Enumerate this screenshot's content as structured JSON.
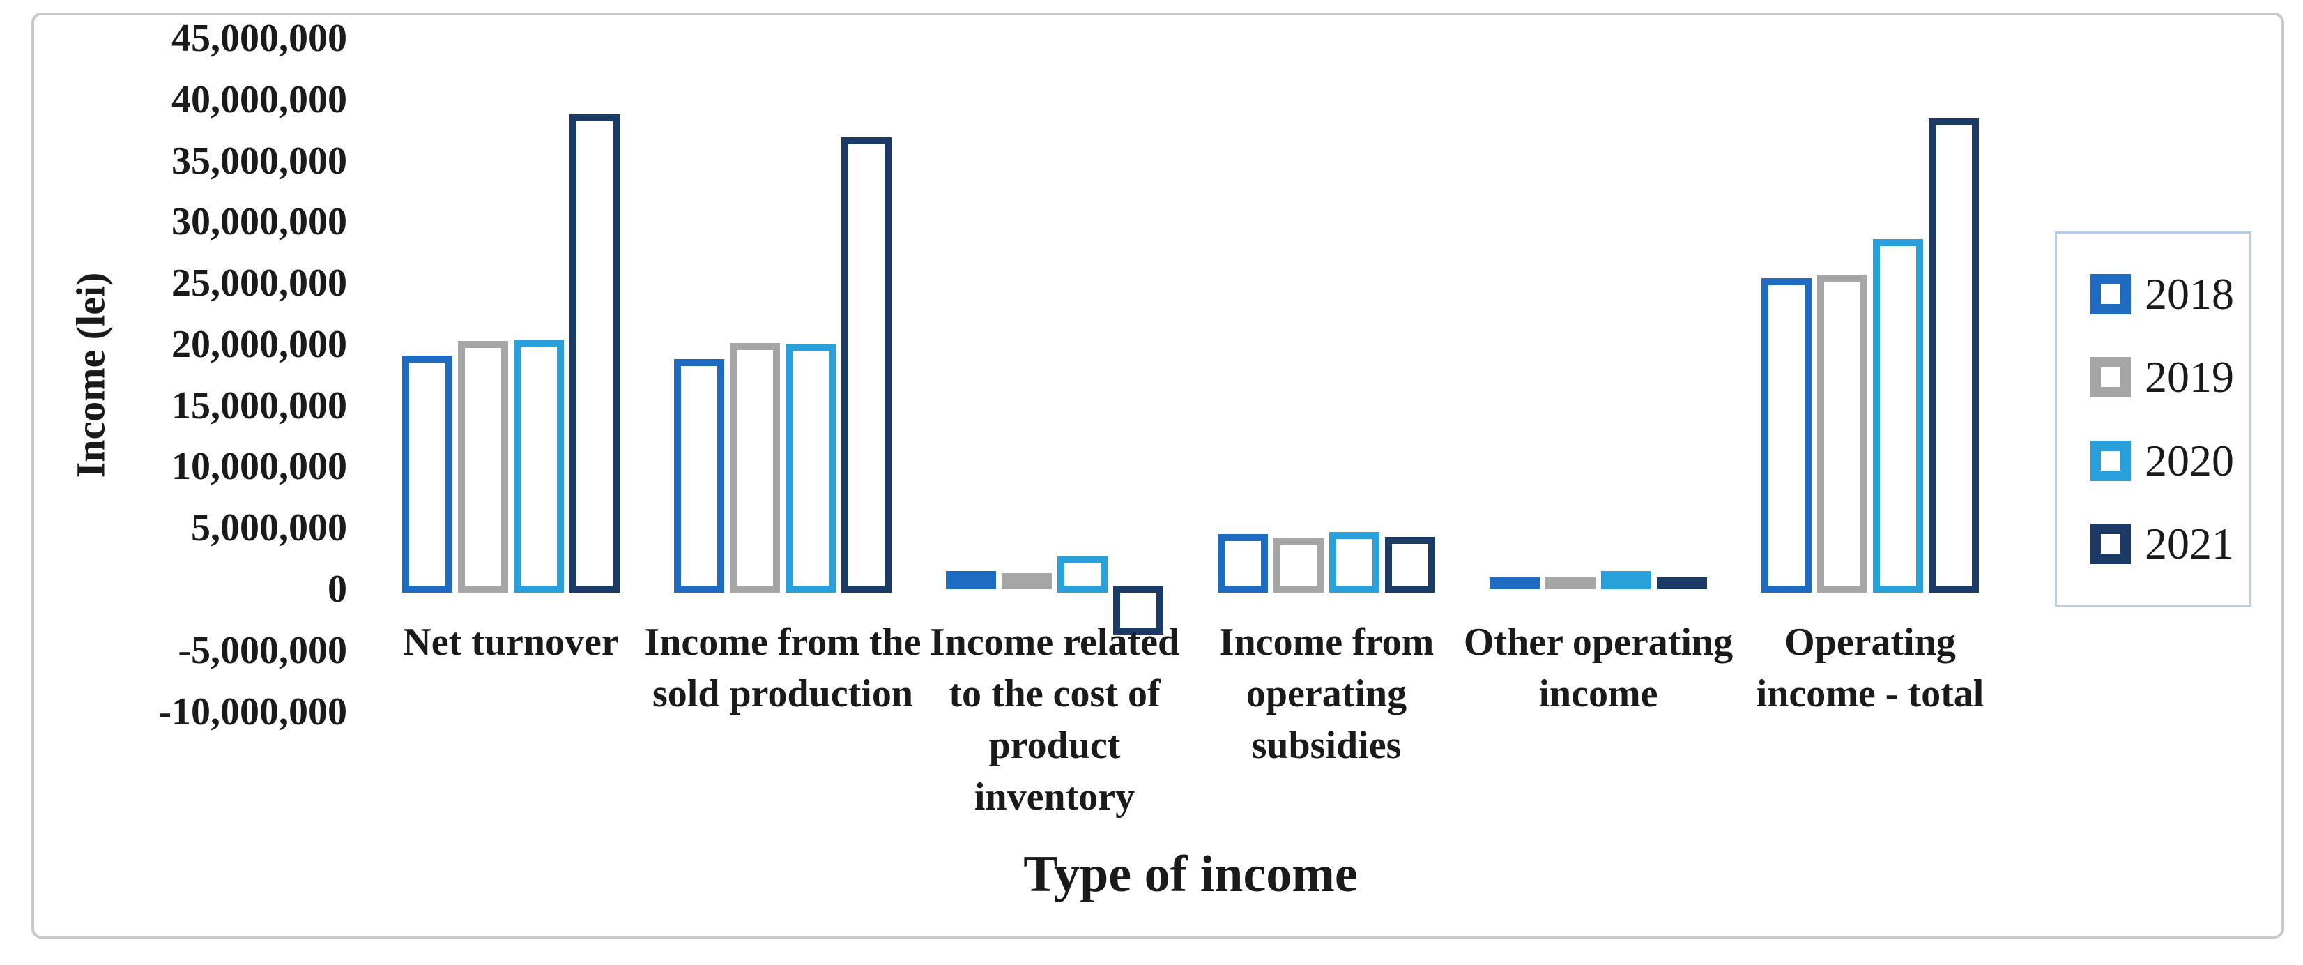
{
  "figure": {
    "background": "#ffffff",
    "border_color": "#c9c9c9"
  },
  "chart_data": {
    "type": "bar",
    "title": "",
    "xlabel": "Type of income",
    "ylabel": "Income (lei)",
    "categories": [
      "Net turnover",
      "Income from the\nsold production",
      "Income related\nto the cost of\nproduct\ninventory",
      "Income from\noperating\nsubsidies",
      "Other operating\nincome",
      "Operating\nincome - total"
    ],
    "series": [
      {
        "name": "2018",
        "color": "#1F6BC1",
        "values": [
          18800000,
          18500000,
          1200000,
          4200000,
          700000,
          25100000
        ]
      },
      {
        "name": "2019",
        "color": "#A6A6A6",
        "values": [
          20000000,
          19800000,
          1000000,
          3900000,
          700000,
          25400000
        ]
      },
      {
        "name": "2020",
        "color": "#29A0DA",
        "values": [
          20100000,
          19700000,
          2400000,
          4400000,
          1200000,
          28300000
        ]
      },
      {
        "name": "2021",
        "color": "#1B3A66",
        "values": [
          38500000,
          36600000,
          -3400000,
          4000000,
          700000,
          38200000
        ]
      }
    ],
    "ylim": [
      -10000000,
      45000000
    ],
    "ytick_step": 5000000,
    "ytick_labels": [
      "45,000,000",
      "40,000,000",
      "35,000,000",
      "30,000,000",
      "25,000,000",
      "20,000,000",
      "15,000,000",
      "10,000,000",
      "5,000,000",
      "0",
      "-5,000,000",
      "-10,000,000"
    ],
    "legend_position": "right",
    "grid": false,
    "bar_style": "hollow-outline"
  }
}
